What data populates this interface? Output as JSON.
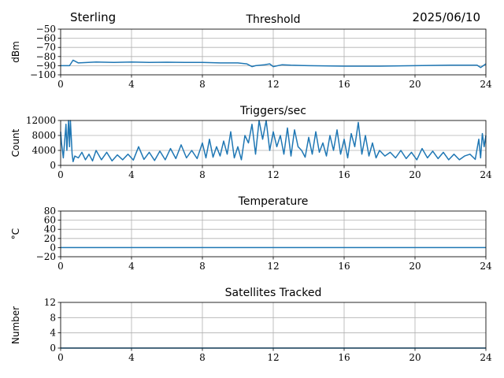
{
  "header": {
    "site": "Sterling",
    "date": "2025/06/10"
  },
  "colors": {
    "line": "#1f77b4",
    "grid": "#b0b0b0",
    "axis": "#000000"
  },
  "chart_data": [
    {
      "type": "line",
      "title": "Threshold",
      "ylabel": "dBm",
      "xlim": [
        0,
        24
      ],
      "ylim": [
        -100,
        -50
      ],
      "xticks": [
        "0",
        "4",
        "8",
        "12",
        "16",
        "20",
        "24"
      ],
      "yticks": [
        "−100",
        "−90",
        "−80",
        "−70",
        "−60",
        "−50"
      ],
      "ytick_values": [
        -100,
        -90,
        -80,
        -70,
        -60,
        -50
      ],
      "grid": true,
      "series": [
        {
          "x": [
            0,
            0.5,
            0.7,
            1,
            2,
            3,
            4,
            5,
            6,
            7,
            8,
            9,
            10,
            10.5,
            10.8,
            11,
            11.5,
            11.8,
            12,
            12.5,
            13,
            14,
            16,
            18,
            20,
            22,
            23.5,
            23.7,
            24
          ],
          "y": [
            -90,
            -90,
            -84,
            -87,
            -86,
            -86.5,
            -86,
            -86.5,
            -86.2,
            -86.5,
            -86.5,
            -87,
            -87,
            -88,
            -91,
            -90,
            -89,
            -88,
            -91,
            -89,
            -89.5,
            -90,
            -90.5,
            -90.5,
            -90,
            -89.5,
            -89.5,
            -92,
            -88
          ]
        }
      ]
    },
    {
      "type": "line",
      "title": "Triggers/sec",
      "ylabel": "Count",
      "xlim": [
        0,
        24
      ],
      "ylim": [
        0,
        12000
      ],
      "xticks": [
        "0",
        "4",
        "8",
        "12",
        "16",
        "20",
        "24"
      ],
      "yticks": [
        "0",
        "4000",
        "8000",
        "12000"
      ],
      "ytick_values": [
        0,
        4000,
        8000,
        12000
      ],
      "grid": true,
      "series": [
        {
          "x": [
            0,
            0.05,
            0.15,
            0.3,
            0.35,
            0.45,
            0.5,
            0.55,
            0.65,
            0.7,
            0.8,
            1.0,
            1.2,
            1.4,
            1.6,
            1.8,
            2.0,
            2.3,
            2.6,
            2.9,
            3.2,
            3.5,
            3.8,
            4.1,
            4.4,
            4.7,
            5.0,
            5.3,
            5.6,
            5.9,
            6.2,
            6.5,
            6.8,
            7.1,
            7.4,
            7.7,
            8.0,
            8.2,
            8.4,
            8.6,
            8.8,
            9.0,
            9.2,
            9.4,
            9.6,
            9.8,
            10.0,
            10.2,
            10.4,
            10.6,
            10.8,
            11.0,
            11.2,
            11.4,
            11.6,
            11.8,
            12.0,
            12.2,
            12.4,
            12.6,
            12.8,
            13.0,
            13.2,
            13.4,
            13.6,
            13.8,
            14.0,
            14.2,
            14.4,
            14.6,
            14.8,
            15.0,
            15.2,
            15.4,
            15.6,
            15.8,
            16.0,
            16.2,
            16.4,
            16.6,
            16.8,
            17.0,
            17.2,
            17.4,
            17.6,
            17.8,
            18.0,
            18.3,
            18.6,
            18.9,
            19.2,
            19.5,
            19.8,
            20.1,
            20.4,
            20.7,
            21.0,
            21.3,
            21.6,
            21.9,
            22.2,
            22.5,
            22.8,
            23.1,
            23.4,
            23.6,
            23.7,
            23.8,
            23.9,
            24.0
          ],
          "y": [
            9000,
            6000,
            2000,
            11000,
            4000,
            12000,
            5000,
            12000,
            3000,
            1000,
            2500,
            2000,
            3500,
            1500,
            3000,
            1200,
            4000,
            1500,
            3500,
            1200,
            2800,
            1500,
            3000,
            1400,
            5000,
            1600,
            3500,
            1300,
            3800,
            1500,
            4500,
            1800,
            5500,
            2000,
            4000,
            1800,
            6000,
            2000,
            7000,
            2200,
            5000,
            2500,
            6500,
            3000,
            9000,
            2000,
            5000,
            1500,
            8000,
            6000,
            11000,
            3000,
            12000,
            7000,
            12000,
            4000,
            9000,
            5000,
            8000,
            3000,
            10000,
            2500,
            9500,
            5000,
            4000,
            2200,
            7500,
            3000,
            9000,
            3500,
            6000,
            2500,
            8000,
            4000,
            9500,
            3000,
            7000,
            2000,
            8500,
            5000,
            11500,
            3000,
            8000,
            2500,
            6000,
            2000,
            4000,
            2500,
            3500,
            2000,
            4000,
            1800,
            3500,
            1500,
            4500,
            2000,
            3800,
            1800,
            3500,
            1500,
            3000,
            1500,
            2500,
            3000,
            1600,
            7000,
            2000,
            8500,
            5000,
            8000
          ]
        }
      ]
    },
    {
      "type": "line",
      "title": "Temperature",
      "ylabel": "°C",
      "xlim": [
        0,
        24
      ],
      "ylim": [
        -20,
        80
      ],
      "xticks": [
        "0",
        "4",
        "8",
        "12",
        "16",
        "20",
        "24"
      ],
      "yticks": [
        "−20",
        "0",
        "20",
        "40",
        "60",
        "80"
      ],
      "ytick_values": [
        -20,
        0,
        20,
        40,
        60,
        80
      ],
      "grid": true,
      "series": [
        {
          "x": [
            0,
            24
          ],
          "y": [
            0,
            0
          ]
        }
      ]
    },
    {
      "type": "line",
      "title": "Satellites Tracked",
      "ylabel": "Number",
      "xlim": [
        0,
        24
      ],
      "ylim": [
        0,
        12
      ],
      "xticks": [
        "0",
        "4",
        "8",
        "12",
        "16",
        "20",
        "24"
      ],
      "yticks": [
        "0",
        "4",
        "8",
        "12"
      ],
      "ytick_values": [
        0,
        4,
        8,
        12
      ],
      "grid": true,
      "series": [
        {
          "x": [
            0,
            24
          ],
          "y": [
            0,
            0
          ]
        }
      ]
    }
  ]
}
